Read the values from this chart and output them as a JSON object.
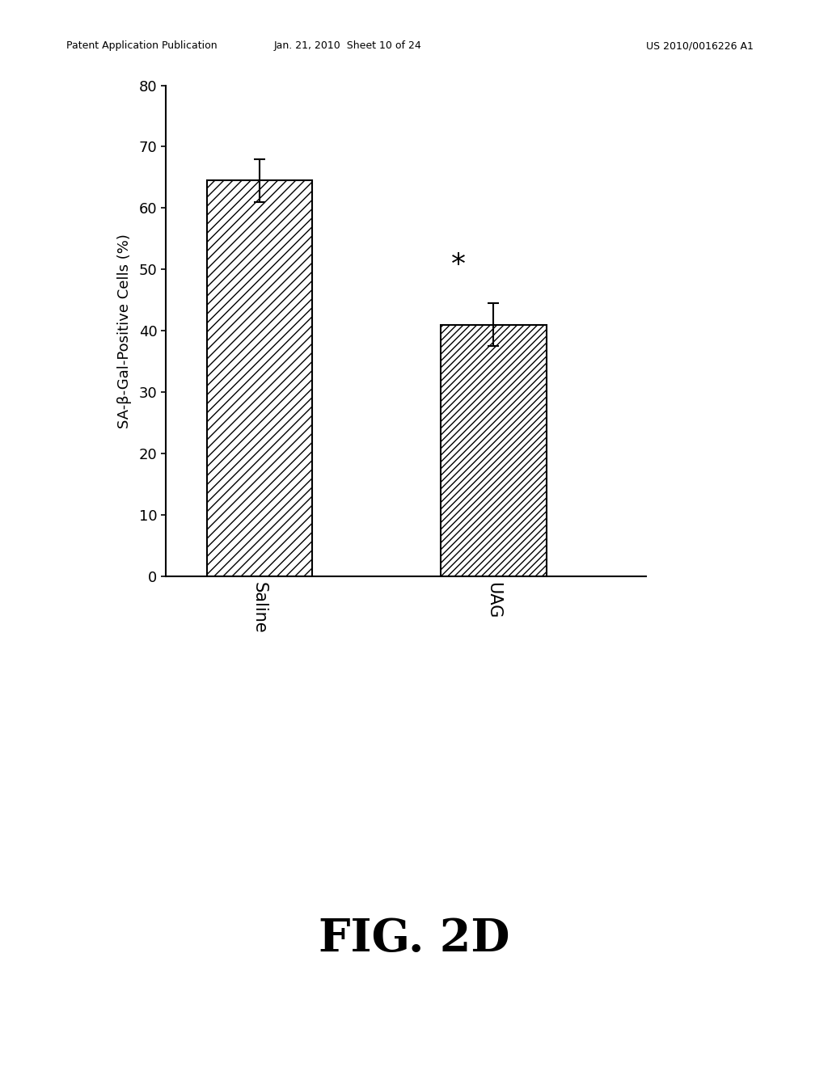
{
  "categories": [
    "Saline",
    "UAG"
  ],
  "values": [
    64.5,
    41.0
  ],
  "errors": [
    3.5,
    3.5
  ],
  "ylabel": "SA-β-Gal-Positive Cells (%)",
  "ylim": [
    0,
    80
  ],
  "yticks": [
    0,
    10,
    20,
    30,
    40,
    50,
    60,
    70,
    80
  ],
  "significance_label": "*",
  "fig_label": "FIG. 2D",
  "patent_header_left": "Patent Application Publication",
  "patent_header_mid": "Jan. 21, 2010  Sheet 10 of 24",
  "patent_header_right": "US 2010/0016226 A1",
  "background_color": "#ffffff",
  "bar_width": 0.45,
  "bar_positions": [
    1,
    2
  ]
}
